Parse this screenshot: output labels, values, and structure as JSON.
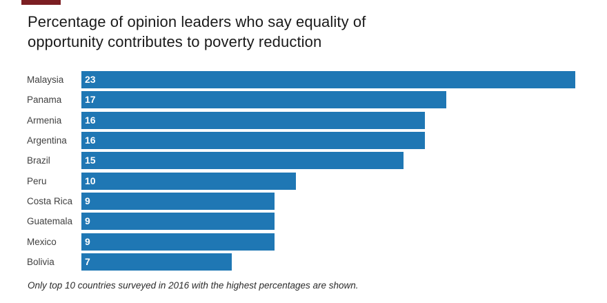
{
  "page": {
    "background_color": "#ffffff",
    "top_left_mark_color": "#7b1e22"
  },
  "title_lines": {
    "line1": "Percentage of opinion leaders who say equality of",
    "line2": "opportunity contributes to poverty reduction"
  },
  "chart_data": {
    "type": "bar",
    "orientation": "horizontal",
    "title": "Percentage of opinion leaders who say equality of opportunity contributes to poverty reduction",
    "categories": [
      "Malaysia",
      "Panama",
      "Armenia",
      "Argentina",
      "Brazil",
      "Peru",
      "Costa Rica",
      "Guatemala",
      "Mexico",
      "Bolivia"
    ],
    "values": [
      23,
      17,
      16,
      16,
      15,
      10,
      9,
      9,
      9,
      7
    ],
    "value_labels_shown_inside_bars": true,
    "bar_color": "#1f77b4",
    "value_label_color": "#ffffff",
    "category_label_color": "#404040",
    "xlim": [
      0,
      23
    ],
    "grid": false,
    "axis_lines": false,
    "legend": "none",
    "footnote": "Only top 10 countries surveyed in 2016 with the highest percentages are shown."
  }
}
